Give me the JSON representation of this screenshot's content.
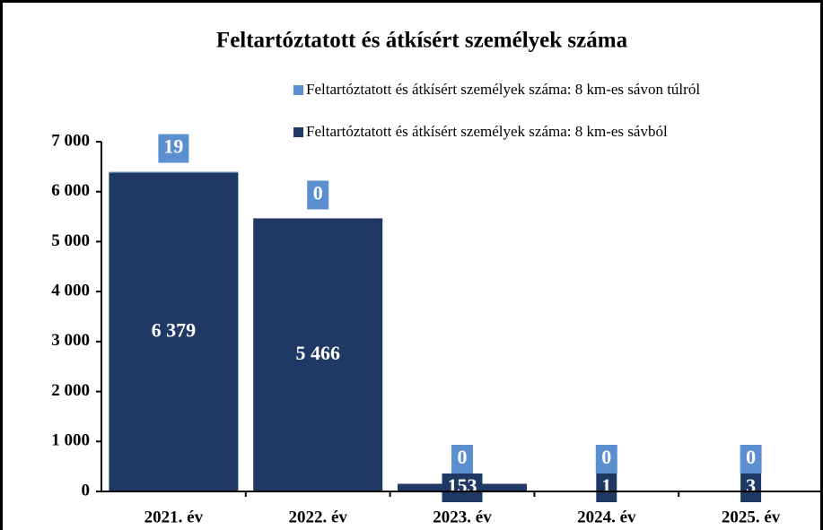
{
  "chart_data": {
    "type": "bar",
    "stacked": true,
    "title": "Feltartóztatott és átkísért személyek száma",
    "categories": [
      "2021. év",
      "2022. év",
      "2023. év",
      "2024. év",
      "2025. év"
    ],
    "series": [
      {
        "name": "Feltartóztatott és átkísért személyek száma: 8 km-es sávból",
        "color": "#1f3864",
        "values": [
          6379,
          5466,
          153,
          1,
          3
        ],
        "value_labels": [
          "6 379",
          "5 466",
          "153",
          "1",
          "3"
        ]
      },
      {
        "name": "Feltartóztatott és átkísért személyek száma: 8 km-es sávon túlról",
        "color": "#5b8fd0",
        "values": [
          19,
          0,
          0,
          0,
          0
        ]
      }
    ],
    "ylim": [
      0,
      7000
    ],
    "yticks": [
      0,
      {
        "value": 1000,
        "label": "1 000"
      },
      {
        "value": 2000,
        "label": "2 000"
      },
      {
        "value": 3000,
        "label": "3 000"
      },
      {
        "value": 4000,
        "label": "4 000"
      },
      {
        "value": 5000,
        "label": "5 000"
      },
      {
        "value": 6000,
        "label": "6 000"
      },
      {
        "value": 7000,
        "label": "7 000"
      }
    ],
    "legend": "top-right"
  }
}
